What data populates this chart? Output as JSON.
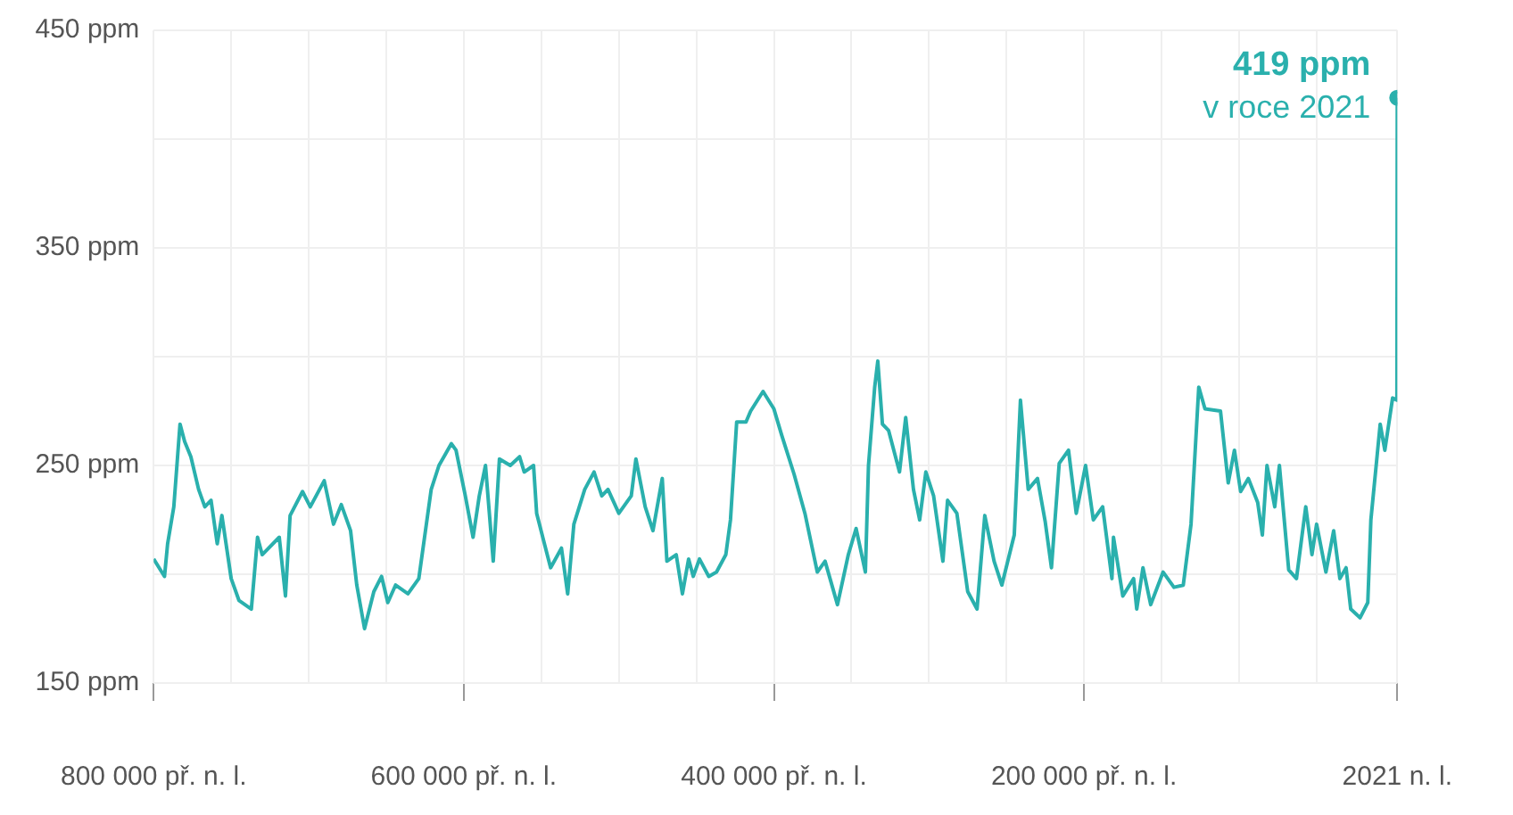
{
  "chart_data": {
    "type": "line",
    "x": [
      -800000,
      -793000,
      -791000,
      -787000,
      -783000,
      -780000,
      -776000,
      -771000,
      -767000,
      -763000,
      -759000,
      -756000,
      -750000,
      -745000,
      -737000,
      -733000,
      -730000,
      -719000,
      -715000,
      -712000,
      -704000,
      -699000,
      -690000,
      -684000,
      -679000,
      -673000,
      -669000,
      -664000,
      -658000,
      -653000,
      -649000,
      -644000,
      -636000,
      -629000,
      -621000,
      -616000,
      -608000,
      -605000,
      -599000,
      -594000,
      -590000,
      -586000,
      -581000,
      -577000,
      -570000,
      -564000,
      -561000,
      -555000,
      -553000,
      -548000,
      -544000,
      -537000,
      -533000,
      -529000,
      -522000,
      -516000,
      -511000,
      -507000,
      -500000,
      -492000,
      -489000,
      -483000,
      -478000,
      -472000,
      -469000,
      -463000,
      -459000,
      -455000,
      -452000,
      -448000,
      -442000,
      -437000,
      -431000,
      -428000,
      -424000,
      -418000,
      -415000,
      -407000,
      -400000,
      -395000,
      -387000,
      -380000,
      -372000,
      -367000,
      -359000,
      -352000,
      -347000,
      -341000,
      -339000,
      -335000,
      -333000,
      -330000,
      -326000,
      -319000,
      -315000,
      -310000,
      -306000,
      -302000,
      -297000,
      -291000,
      -288000,
      -282000,
      -275000,
      -269000,
      -264000,
      -258000,
      -253000,
      -245000,
      -241000,
      -236000,
      -230000,
      -225000,
      -221000,
      -216000,
      -210000,
      -205000,
      -199000,
      -194000,
      -188000,
      -182000,
      -181000,
      -175000,
      -168000,
      -166000,
      -162000,
      -157000,
      -149000,
      -142000,
      -136000,
      -131000,
      -126000,
      -122000,
      -112000,
      -107000,
      -103000,
      -99000,
      -94000,
      -88000,
      -85000,
      -82000,
      -77000,
      -74000,
      -68000,
      -63000,
      -57000,
      -53000,
      -50000,
      -44000,
      -39000,
      -35000,
      -31000,
      -28000,
      -22000,
      -17000,
      -15000,
      -9000,
      -6000,
      -1000,
      1800,
      2021
    ],
    "series": [
      {
        "color": "#2ab0ad",
        "values": [
          207,
          199,
          214,
          231,
          269,
          261,
          254,
          239,
          231,
          234,
          214,
          227,
          198,
          188,
          184,
          217,
          209,
          217,
          190,
          227,
          238,
          231,
          243,
          223,
          232,
          220,
          195,
          175,
          192,
          199,
          187,
          195,
          191,
          198,
          239,
          250,
          260,
          257,
          236,
          217,
          236,
          250,
          206,
          253,
          250,
          254,
          247,
          250,
          228,
          214,
          203,
          212,
          191,
          223,
          239,
          247,
          236,
          239,
          228,
          236,
          253,
          231,
          220,
          244,
          206,
          209,
          191,
          207,
          199,
          207,
          199,
          201,
          209,
          225,
          270,
          270,
          275,
          284,
          276,
          264,
          246,
          228,
          201,
          206,
          186,
          209,
          221,
          201,
          250,
          286,
          298,
          269,
          266,
          247,
          272,
          239,
          225,
          247,
          236,
          206,
          234,
          228,
          192,
          184,
          227,
          206,
          195,
          218,
          280,
          239,
          244,
          224,
          203,
          251,
          257,
          228,
          250,
          225,
          231,
          198,
          217,
          190,
          198,
          184,
          203,
          186,
          201,
          194,
          195,
          223,
          286,
          276,
          275,
          242,
          257,
          238,
          244,
          233,
          218,
          250,
          231,
          250,
          202,
          198,
          231,
          209,
          223,
          201,
          220,
          198,
          203,
          184,
          180,
          187,
          225,
          269,
          257,
          281,
          280,
          419
        ],
        "value_labels": [
          null,
          null,
          null,
          null,
          null,
          null,
          null,
          null,
          null,
          null,
          null,
          null,
          null,
          null,
          null,
          null,
          null,
          null,
          null,
          null,
          null,
          null,
          null,
          null,
          null,
          null,
          null,
          null,
          null,
          null,
          null,
          null,
          null,
          null,
          null,
          null,
          null,
          null,
          null,
          null,
          null,
          null,
          null,
          null,
          null,
          null,
          null,
          null,
          null,
          null,
          null,
          null,
          null,
          null,
          null,
          null,
          null,
          null,
          null,
          null,
          null,
          null,
          null,
          null,
          null,
          null,
          null,
          null,
          null,
          null,
          null,
          null,
          null,
          null,
          null,
          null,
          null,
          null,
          null,
          null,
          null,
          null,
          null,
          null,
          null,
          null,
          null,
          null,
          null,
          null,
          null,
          null,
          null,
          null,
          null,
          null,
          null,
          null,
          null,
          null,
          null,
          null,
          null,
          null,
          null,
          null,
          null,
          null,
          null,
          null,
          null,
          null,
          null,
          null,
          null,
          null,
          null,
          null,
          null,
          null,
          null,
          null,
          null,
          null,
          null,
          null,
          null,
          null,
          null,
          null,
          null,
          null,
          null,
          null,
          null,
          null,
          null,
          null,
          null,
          null,
          null,
          null,
          null,
          null,
          null,
          null,
          null,
          null,
          null,
          null,
          null,
          null,
          null,
          null,
          null,
          null,
          null,
          null,
          null,
          "419 ppm"
        ]
      }
    ],
    "annotations": [
      {
        "text": "v roce 2021",
        "x": 2021,
        "y": 419
      }
    ],
    "xlim": [
      -800000,
      2021
    ],
    "xticks": [
      {
        "value": -800000,
        "label": "800 000 př. n. l."
      },
      {
        "value": -750000,
        "label": null
      },
      {
        "value": -700000,
        "label": null
      },
      {
        "value": -650000,
        "label": null
      },
      {
        "value": -600000,
        "label": "600 000 př. n. l."
      },
      {
        "value": -550000,
        "label": null
      },
      {
        "value": -500000,
        "label": null
      },
      {
        "value": -450000,
        "label": null
      },
      {
        "value": -400000,
        "label": "400 000 př. n. l."
      },
      {
        "value": -350000,
        "label": null
      },
      {
        "value": -300000,
        "label": null
      },
      {
        "value": -250000,
        "label": null
      },
      {
        "value": -200000,
        "label": "200 000 př. n. l."
      },
      {
        "value": -150000,
        "label": null
      },
      {
        "value": -100000,
        "label": null
      },
      {
        "value": -50000,
        "label": null
      },
      {
        "value": 2021,
        "label": "2021 n. l."
      }
    ],
    "ylim": [
      150,
      450
    ],
    "yticks": [
      {
        "value": 150,
        "label": "150 ppm"
      },
      {
        "value": 200,
        "label": null
      },
      {
        "value": 250,
        "label": "250 ppm"
      },
      {
        "value": 300,
        "label": null
      },
      {
        "value": 350,
        "label": "350 ppm"
      },
      {
        "value": 400,
        "label": null
      },
      {
        "value": 450,
        "label": "450 ppm"
      }
    ],
    "grid": true,
    "legend": false,
    "marker": "none",
    "line_style": "solid"
  }
}
